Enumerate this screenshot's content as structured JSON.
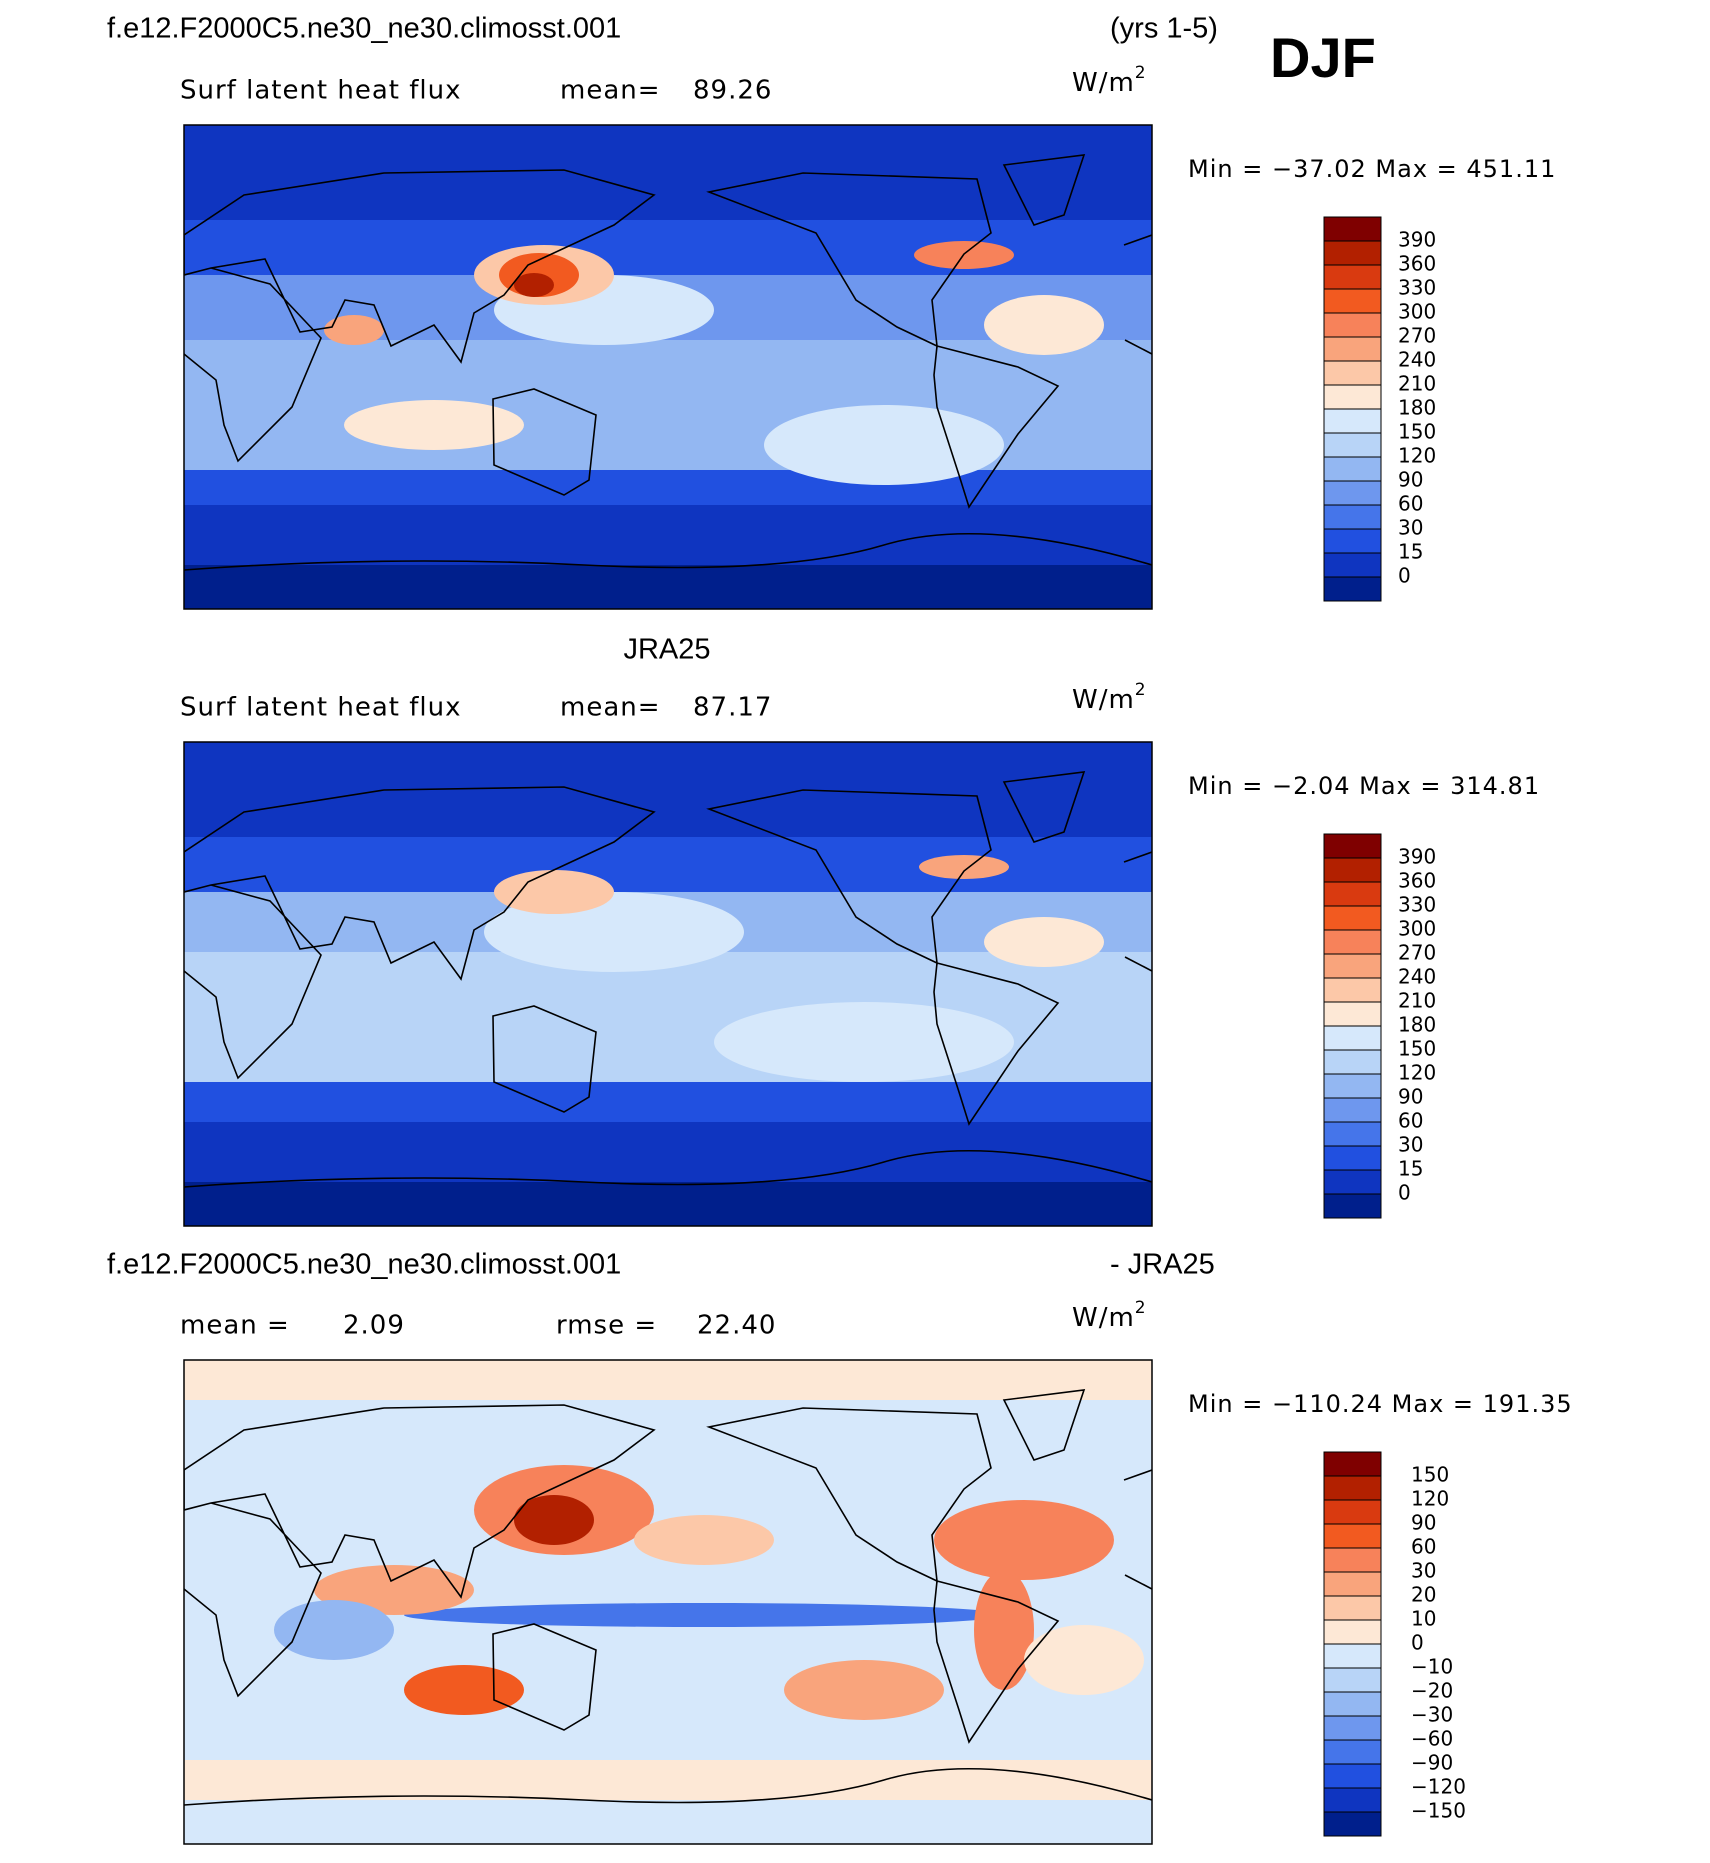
{
  "header": {
    "title": "f.e12.F2000C5.ne30_ne30.climosst.001",
    "years": "(yrs 1-5)",
    "season": "DJF"
  },
  "colors": [
    "#7f0000",
    "#b22000",
    "#d93a10",
    "#f25a20",
    "#f7825a",
    "#f9a47c",
    "#fcc8a8",
    "#fde8d6",
    "#d6e8fb",
    "#b8d4f7",
    "#93b7f2",
    "#6e97ee",
    "#4575ea",
    "#2150e0",
    "#0f35c0",
    "#001f8c"
  ],
  "panels": [
    {
      "labels": [
        "Surf latent heat flux",
        "mean=",
        "89.26"
      ],
      "units": "W/m",
      "units_sup": "2",
      "range": "Min = −37.02 Max = 451.11",
      "levels": [
        "390",
        "360",
        "330",
        "300",
        "270",
        "240",
        "210",
        "180",
        "150",
        "120",
        "90",
        "60",
        "30",
        "15",
        "0"
      ]
    },
    {
      "title": "JRA25",
      "labels": [
        "Surf latent heat flux",
        "mean=",
        "87.17"
      ],
      "units": "W/m",
      "units_sup": "2",
      "range": "Min =   −2.04 Max = 314.81",
      "levels": [
        "390",
        "360",
        "330",
        "300",
        "270",
        "240",
        "210",
        "180",
        "150",
        "120",
        "90",
        "60",
        "30",
        "15",
        "0"
      ]
    },
    {
      "title": "f.e12.F2000C5.ne30_ne30.climosst.001",
      "title_right": "- JRA25",
      "labels": [
        "mean =",
        "2.09",
        "rmse =",
        "22.40"
      ],
      "units": "W/m",
      "units_sup": "2",
      "range": "Min = −110.24 Max = 191.35",
      "levels": [
        "150",
        "120",
        "90",
        "60",
        "30",
        "20",
        "10",
        "0",
        "−10",
        "−20",
        "−30",
        "−60",
        "−90",
        "−120",
        "−150"
      ]
    }
  ]
}
